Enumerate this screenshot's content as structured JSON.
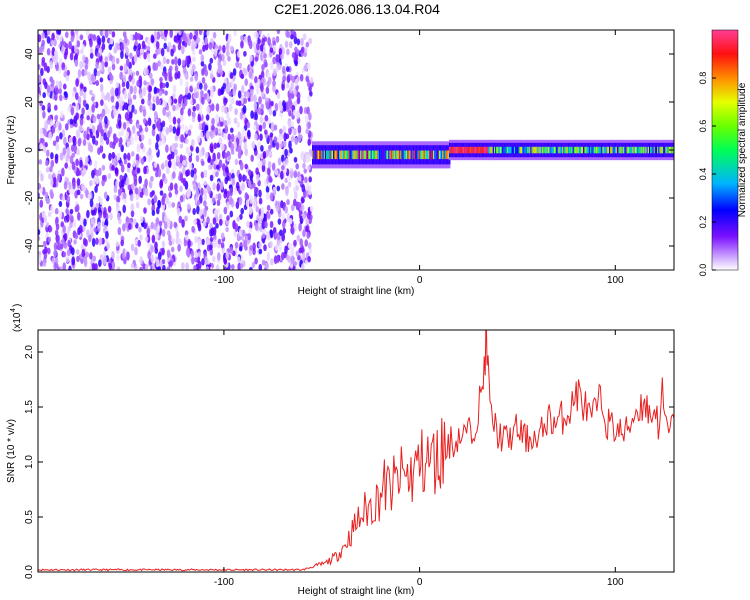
{
  "page": {
    "title": "C2E1.2026.086.13.04.R04"
  },
  "chart_data": [
    {
      "type": "heatmap",
      "xlabel": "Height of straight line (km)",
      "ylabel": "Frequency (Hz)",
      "xlim": [
        -195,
        130
      ],
      "ylim": [
        -50,
        50
      ],
      "xticks": [
        -100,
        0,
        100
      ],
      "xtick_labels": [
        "-100",
        "0",
        "100"
      ],
      "yticks": [
        -40,
        -20,
        0,
        20,
        40
      ],
      "ytick_labels": [
        "-40",
        "-20",
        "0",
        "20",
        "40"
      ],
      "grid": false,
      "description_regions": [
        {
          "x_range": [
            -195,
            -55
          ],
          "f_range": [
            -50,
            50
          ],
          "amplitude_range": [
            0.02,
            0.3
          ]
        },
        {
          "x_range": [
            -55,
            15
          ],
          "f_center": -2,
          "f_halfwidth": 4,
          "amplitude_range": [
            0.2,
            0.95
          ]
        },
        {
          "x_range": [
            15,
            35
          ],
          "f_center": 0,
          "f_halfwidth": 3,
          "amplitude_range": [
            0.85,
            1.0
          ]
        },
        {
          "x_range": [
            35,
            130
          ],
          "f_center": 0,
          "f_halfwidth": 3,
          "amplitude_range": [
            0.3,
            0.75
          ]
        }
      ],
      "colorbar": {
        "label": "Normalized spectral amplitude",
        "range": [
          0,
          1
        ],
        "ticks": [
          0.0,
          0.2,
          0.4,
          0.6,
          0.8
        ],
        "tick_labels": [
          "0.0",
          "0.2",
          "0.4",
          "0.6",
          "0.8"
        ],
        "colormap": [
          "#ffffff",
          "#b070ff",
          "#6a00ff",
          "#0000ff",
          "#00c8ff",
          "#00ff60",
          "#c8ff00",
          "#ffc000",
          "#ff2020",
          "#ff40a0"
        ]
      }
    },
    {
      "type": "line",
      "xlabel": "Height of straight line (km)",
      "ylabel": "SNR (10 * v/v)",
      "exponent_label": "(x10",
      "exponent_power": "4",
      "xlim": [
        -195,
        130
      ],
      "ylim": [
        0,
        2.2
      ],
      "xticks": [
        -100,
        0,
        100
      ],
      "xtick_labels": [
        "-100",
        "0",
        "100"
      ],
      "yticks": [
        0.0,
        0.5,
        1.0,
        1.5,
        2.0
      ],
      "ytick_labels": [
        "0.0",
        "0.5",
        "1.0",
        "1.5",
        "2.0"
      ],
      "grid": false,
      "series": [
        {
          "color": "#e82020",
          "x": [
            -195,
            -150,
            -100,
            -60,
            -48,
            -42,
            -38,
            -35,
            -32,
            -30,
            -28,
            -25,
            -22,
            -20,
            -18,
            -15,
            -12,
            -10,
            -8,
            -5,
            -2,
            0,
            3,
            6,
            9,
            10,
            12,
            14,
            16,
            18,
            20,
            22,
            24,
            26,
            28,
            30,
            32,
            33,
            34,
            35,
            36,
            38,
            40,
            45,
            50,
            55,
            58,
            60,
            63,
            65,
            70,
            75,
            78,
            80,
            83,
            86,
            88,
            90,
            93,
            96,
            100,
            105,
            110,
            115,
            118,
            120,
            122,
            124,
            126,
            128,
            130
          ],
          "y": [
            0.02,
            0.02,
            0.02,
            0.02,
            0.08,
            0.15,
            0.25,
            0.35,
            0.45,
            0.5,
            0.55,
            0.6,
            0.65,
            0.72,
            0.78,
            0.75,
            0.82,
            0.85,
            0.88,
            0.85,
            0.95,
            0.98,
            1.0,
            1.02,
            1.0,
            1.05,
            1.15,
            1.1,
            1.2,
            1.15,
            1.25,
            1.2,
            1.3,
            1.25,
            1.35,
            1.5,
            1.6,
            1.9,
            2.15,
            1.85,
            1.45,
            1.35,
            1.25,
            1.2,
            1.3,
            1.2,
            1.25,
            1.15,
            1.3,
            1.4,
            1.35,
            1.45,
            1.5,
            1.65,
            1.55,
            1.45,
            1.35,
            1.5,
            1.55,
            1.35,
            1.3,
            1.25,
            1.45,
            1.55,
            1.4,
            1.5,
            1.35,
            1.6,
            1.3,
            1.25,
            1.4
          ]
        }
      ]
    }
  ]
}
